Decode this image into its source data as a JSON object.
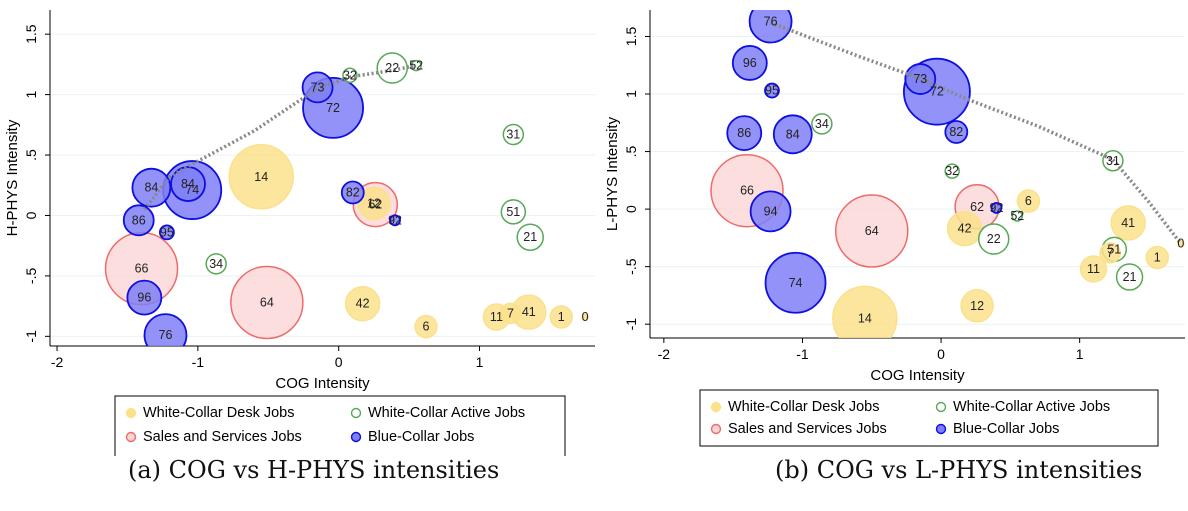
{
  "colors": {
    "desk": {
      "fill": "#fbe18c",
      "stroke": "#fbe18c"
    },
    "sales": {
      "fill": "#fbd3d3",
      "stroke": "#ee6b6b"
    },
    "active": {
      "fill": "#ffffff",
      "stroke": "#57a857"
    },
    "blue": {
      "fill": "#7f7ff7",
      "stroke": "#0f0fe0"
    },
    "trend": "#888888"
  },
  "captions": [
    "(a) COG vs H-PHYS intensities",
    "(b) COG vs L-PHYS intensities"
  ],
  "chart_data": [
    {
      "type": "scatter",
      "title": "",
      "xlabel": "COG Intensity",
      "ylabel": "H-PHYS Intensity",
      "xlim": [
        -2.05,
        1.82
      ],
      "ylim": [
        -1.08,
        1.7
      ],
      "xticks": [
        -2,
        -1,
        0,
        1
      ],
      "yticks": [
        -1,
        -0.5,
        0,
        0.5,
        1,
        1.5
      ],
      "ytick_labels": [
        "-1",
        "-.5",
        "0",
        ".5",
        "1",
        "1.5"
      ],
      "legend": {
        "placement": "bottom",
        "entries": [
          {
            "group": "desk",
            "label": "White-Collar Desk Jobs"
          },
          {
            "group": "active",
            "label": "White-Collar Active Jobs"
          },
          {
            "group": "sales",
            "label": "Sales and Services Jobs"
          },
          {
            "group": "blue",
            "label": "Blue-Collar Jobs"
          }
        ]
      },
      "trend": [
        [
          -1.38,
          0.05
        ],
        [
          -1.2,
          0.32
        ],
        [
          -1.0,
          0.45
        ],
        [
          -0.6,
          0.7
        ],
        [
          -0.14,
          1.06
        ],
        [
          0.1,
          1.15
        ],
        [
          0.38,
          1.2
        ],
        [
          0.55,
          1.24
        ]
      ],
      "points": [
        {
          "label": "14",
          "group": "desk",
          "x": -0.55,
          "y": 0.32,
          "size": 32
        },
        {
          "label": "42",
          "group": "desk",
          "x": 0.17,
          "y": -0.73,
          "size": 17
        },
        {
          "label": "6",
          "group": "desk",
          "x": 0.62,
          "y": -0.92,
          "size": 11
        },
        {
          "label": "11",
          "group": "desk",
          "x": 1.12,
          "y": -0.84,
          "size": 13
        },
        {
          "label": "7",
          "group": "desk",
          "x": 1.22,
          "y": -0.81,
          "size": 10
        },
        {
          "label": "41",
          "group": "desk",
          "x": 1.35,
          "y": -0.8,
          "size": 17
        },
        {
          "label": "1",
          "group": "desk",
          "x": 1.58,
          "y": -0.84,
          "size": 11
        },
        {
          "label": "0",
          "group": "desk",
          "x": 1.75,
          "y": -0.84,
          "size": 3
        },
        {
          "label": "12",
          "group": "desk",
          "x": 0.25,
          "y": 0.1,
          "size": 16
        },
        {
          "label": "32",
          "group": "active",
          "x": 0.08,
          "y": 1.16,
          "size": 7
        },
        {
          "label": "22",
          "group": "active",
          "x": 0.38,
          "y": 1.22,
          "size": 15
        },
        {
          "label": "52",
          "group": "active",
          "x": 0.55,
          "y": 1.24,
          "size": 5
        },
        {
          "label": "31",
          "group": "active",
          "x": 1.24,
          "y": 0.67,
          "size": 10
        },
        {
          "label": "51",
          "group": "active",
          "x": 1.24,
          "y": 0.03,
          "size": 12
        },
        {
          "label": "21",
          "group": "active",
          "x": 1.36,
          "y": -0.18,
          "size": 13
        },
        {
          "label": "34",
          "group": "active",
          "x": -0.87,
          "y": -0.4,
          "size": 10
        },
        {
          "label": "66",
          "group": "sales",
          "x": -1.4,
          "y": -0.44,
          "size": 36
        },
        {
          "label": "64",
          "group": "sales",
          "x": -0.51,
          "y": -0.72,
          "size": 36
        },
        {
          "label": "62",
          "group": "sales",
          "x": 0.26,
          "y": 0.09,
          "size": 22
        },
        {
          "label": "73",
          "group": "blue",
          "x": -0.15,
          "y": 1.06,
          "size": 15
        },
        {
          "label": "72",
          "group": "blue",
          "x": -0.04,
          "y": 0.89,
          "size": 30
        },
        {
          "label": "84",
          "group": "blue",
          "x": -1.07,
          "y": 0.26,
          "size": 17
        },
        {
          "label": "84",
          "group": "blue",
          "x": -1.33,
          "y": 0.23,
          "size": 19
        },
        {
          "label": "74",
          "group": "blue",
          "x": -1.04,
          "y": 0.21,
          "size": 29
        },
        {
          "label": "86",
          "group": "blue",
          "x": -1.42,
          "y": -0.04,
          "size": 15
        },
        {
          "label": "95",
          "group": "blue",
          "x": -1.22,
          "y": -0.14,
          "size": 7
        },
        {
          "label": "96",
          "group": "blue",
          "x": -1.38,
          "y": -0.68,
          "size": 17
        },
        {
          "label": "76",
          "group": "blue",
          "x": -1.23,
          "y": -0.99,
          "size": 21
        },
        {
          "label": "82",
          "group": "blue",
          "x": 0.1,
          "y": 0.19,
          "size": 11
        },
        {
          "label": "92",
          "group": "blue",
          "x": 0.4,
          "y": -0.04,
          "size": 5
        }
      ]
    },
    {
      "type": "scatter",
      "title": "",
      "xlabel": "COG Intensity",
      "ylabel": "L-PHYS Intensity",
      "xlim": [
        -2.1,
        1.76
      ],
      "ylim": [
        -1.12,
        1.73
      ],
      "xticks": [
        -2,
        -1,
        0,
        1
      ],
      "yticks": [
        -1,
        -0.5,
        0,
        0.5,
        1,
        1.5
      ],
      "ytick_labels": [
        "-1",
        "-.5",
        "0",
        ".5",
        "1",
        "1.5"
      ],
      "legend": {
        "placement": "bottom",
        "entries": [
          {
            "group": "desk",
            "label": "White-Collar Desk Jobs"
          },
          {
            "group": "active",
            "label": "White-Collar Active Jobs"
          },
          {
            "group": "sales",
            "label": "Sales and Services Jobs"
          },
          {
            "group": "blue",
            "label": "Blue-Collar Jobs"
          }
        ]
      },
      "trend": [
        [
          -1.23,
          1.62
        ],
        [
          -0.6,
          1.33
        ],
        [
          -0.14,
          1.13
        ],
        [
          0.2,
          0.95
        ],
        [
          0.7,
          0.72
        ],
        [
          1.24,
          0.43
        ],
        [
          1.5,
          0.06
        ],
        [
          1.73,
          -0.3
        ]
      ],
      "points": [
        {
          "label": "14",
          "group": "desk",
          "x": -0.55,
          "y": -0.95,
          "size": 32
        },
        {
          "label": "12",
          "group": "desk",
          "x": 0.26,
          "y": -0.84,
          "size": 16
        },
        {
          "label": "42",
          "group": "desk",
          "x": 0.17,
          "y": -0.17,
          "size": 17
        },
        {
          "label": "6",
          "group": "desk",
          "x": 0.63,
          "y": 0.07,
          "size": 11
        },
        {
          "label": "41",
          "group": "desk",
          "x": 1.35,
          "y": -0.12,
          "size": 17
        },
        {
          "label": "11",
          "group": "desk",
          "x": 1.1,
          "y": -0.52,
          "size": 13
        },
        {
          "label": "7",
          "group": "desk",
          "x": 1.22,
          "y": -0.38,
          "size": 10
        },
        {
          "label": "1",
          "group": "desk",
          "x": 1.56,
          "y": -0.42,
          "size": 11
        },
        {
          "label": "0",
          "group": "desk",
          "x": 1.73,
          "y": -0.3,
          "size": 3
        },
        {
          "label": "34",
          "group": "active",
          "x": -0.86,
          "y": 0.74,
          "size": 10
        },
        {
          "label": "32",
          "group": "active",
          "x": 0.08,
          "y": 0.33,
          "size": 7
        },
        {
          "label": "31",
          "group": "active",
          "x": 1.24,
          "y": 0.42,
          "size": 10
        },
        {
          "label": "22",
          "group": "active",
          "x": 0.38,
          "y": -0.26,
          "size": 15
        },
        {
          "label": "52",
          "group": "active",
          "x": 0.55,
          "y": -0.06,
          "size": 5
        },
        {
          "label": "51",
          "group": "active",
          "x": 1.25,
          "y": -0.35,
          "size": 12
        },
        {
          "label": "21",
          "group": "active",
          "x": 1.36,
          "y": -0.59,
          "size": 13
        },
        {
          "label": "66",
          "group": "sales",
          "x": -1.4,
          "y": 0.16,
          "size": 36
        },
        {
          "label": "64",
          "group": "sales",
          "x": -0.5,
          "y": -0.19,
          "size": 36
        },
        {
          "label": "62",
          "group": "sales",
          "x": 0.26,
          "y": 0.02,
          "size": 22
        },
        {
          "label": "76",
          "group": "blue",
          "x": -1.23,
          "y": 1.63,
          "size": 21
        },
        {
          "label": "96",
          "group": "blue",
          "x": -1.38,
          "y": 1.27,
          "size": 17
        },
        {
          "label": "95",
          "group": "blue",
          "x": -1.22,
          "y": 1.03,
          "size": 7
        },
        {
          "label": "86",
          "group": "blue",
          "x": -1.42,
          "y": 0.66,
          "size": 17
        },
        {
          "label": "84",
          "group": "blue",
          "x": -1.07,
          "y": 0.65,
          "size": 19
        },
        {
          "label": "94",
          "group": "blue",
          "x": -1.23,
          "y": -0.02,
          "size": 20
        },
        {
          "label": "74",
          "group": "blue",
          "x": -1.05,
          "y": -0.64,
          "size": 30
        },
        {
          "label": "73",
          "group": "blue",
          "x": -0.15,
          "y": 1.13,
          "size": 15
        },
        {
          "label": "72",
          "group": "blue",
          "x": -0.03,
          "y": 1.02,
          "size": 33
        },
        {
          "label": "82",
          "group": "blue",
          "x": 0.11,
          "y": 0.67,
          "size": 11
        },
        {
          "label": "92",
          "group": "blue",
          "x": 0.4,
          "y": 0.01,
          "size": 5
        }
      ]
    }
  ]
}
